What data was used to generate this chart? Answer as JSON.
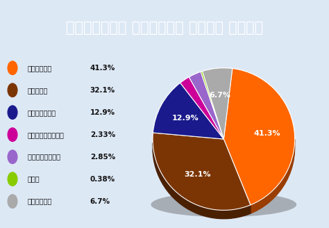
{
  "title": "పార్టీల వారీగా ఓట్ల శాతం",
  "title_bg_color": "#3355aa",
  "title_text_color": "#ffffff",
  "background_color": "#dde8f5",
  "parties": [
    {
      "name": "జీజేపీ",
      "value": 41.3,
      "color": "#ff6600"
    },
    {
      "name": "ఎస్పీ",
      "value": 32.1,
      "color": "#7b3505"
    },
    {
      "name": "బీఎస్పీ",
      "value": 12.9,
      "color": "#1a1a8c"
    },
    {
      "name": "కాంగ్రెస్",
      "value": 2.33,
      "color": "#cc0099"
    },
    {
      "name": "ఆర్‌ఎల్‌డీ",
      "value": 2.85,
      "color": "#9966cc"
    },
    {
      "name": "ఆప్",
      "value": 0.38,
      "color": "#88cc00"
    },
    {
      "name": "ఇతరులు",
      "value": 6.7,
      "color": "#aaaaaa"
    }
  ],
  "pie_labels": [
    "41.3%",
    "32.1%",
    "12.9%",
    "",
    "",
    "",
    "6.7%"
  ],
  "legend_values": [
    "41.3%",
    "32.1%",
    "12.9%",
    "2.33%",
    "2.85%",
    "0.38%",
    "6.7%"
  ],
  "startangle": 83
}
